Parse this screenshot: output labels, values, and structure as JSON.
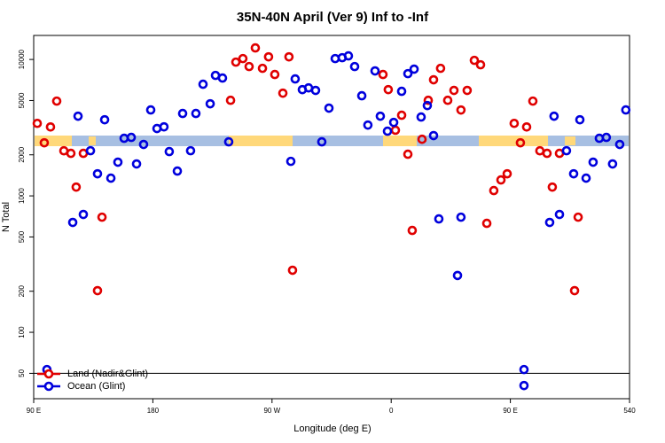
{
  "chart_data": {
    "type": "scatter",
    "title": "35N-40N April (Ver 9)   Inf to -Inf",
    "xlabel": "Longitude (deg E)",
    "ylabel": "N Total",
    "xlim": [
      90,
      540
    ],
    "ylim": [
      32.6,
      15000
    ],
    "log_y": true,
    "xticks": [
      {
        "value": 90,
        "label": "90 E"
      },
      180,
      {
        "value": 270,
        "label": "90 W"
      },
      {
        "value": 360,
        "label": "0"
      },
      {
        "value": 450,
        "label": "90 E"
      },
      540
    ],
    "yticks": [
      50,
      100,
      200,
      500,
      1000,
      2000,
      5000,
      10000
    ],
    "hline": 50,
    "legend": "bottom-left",
    "series": [
      {
        "name": "Land (Nadir&Glint)",
        "color": "#e00000",
        "x": [
          92.7,
          98,
          102.7,
          107.4,
          112.8,
          118.1,
          122.1,
          127.5,
          138.2,
          141.6,
          238.7,
          242.7,
          248,
          252.7,
          257.4,
          262.8,
          267.4,
          272.1,
          278.2,
          282.8,
          285.5,
          353.8,
          357.8,
          363.2,
          367.9,
          372.6,
          375.9,
          383.3,
          388,
          392,
          397.3,
          402.7,
          407.4,
          412.7,
          417.4,
          422.8,
          427.5,
          432.2,
          437.5,
          442.9,
          447.6,
          452.9,
          457.6,
          462.3,
          467,
          472.3,
          477.7,
          481.7,
          487.1,
          498.5,
          501.2
        ],
        "values": [
          3400,
          2450,
          3200,
          4950,
          2140,
          2050,
          1160,
          2050,
          202,
          698,
          5020,
          9560,
          10150,
          8870,
          12150,
          8610,
          10450,
          7760,
          5660,
          10450,
          285,
          7760,
          6010,
          3030,
          3900,
          2020,
          558,
          2600,
          5020,
          7100,
          8610,
          5020,
          5930,
          4260,
          5930,
          9850,
          9140,
          629,
          1094,
          1309,
          1452,
          3400,
          2450,
          3200,
          4950,
          2140,
          2050,
          1160,
          2050,
          202,
          698
        ]
      },
      {
        "name": "Ocean (Glint)",
        "color": "#0000dd",
        "x": [
          100,
          119.5,
          123.5,
          127.5,
          132.9,
          138.2,
          143.6,
          148.3,
          153.6,
          158.3,
          163.7,
          167.7,
          173,
          178.4,
          183.1,
          188.4,
          192.4,
          198.5,
          202.5,
          208.5,
          212.5,
          217.9,
          223.3,
          227.3,
          232.6,
          237.3,
          284.2,
          287.5,
          292.9,
          297.6,
          302.9,
          307.6,
          313,
          317.7,
          323,
          327.7,
          332.4,
          337.8,
          342.4,
          347.8,
          351.8,
          357.2,
          361.9,
          367.9,
          372.6,
          377.3,
          382.6,
          387.3,
          392,
          396,
          410.1,
          412.7,
          460.3,
          460.3,
          479.7,
          483,
          487.1,
          492.4,
          497.8,
          502.5,
          507.2,
          512.5,
          517.2,
          522.5,
          527.2,
          532.6,
          537.2
        ],
        "values": [
          53.3,
          639,
          3838,
          731,
          2143,
          1452,
          3614,
          1349,
          1766,
          2644,
          2683,
          1714,
          2383,
          4265,
          3117,
          3206,
          2112,
          1520,
          4018,
          2143,
          4018,
          6580,
          4732,
          7640,
          7310,
          2490,
          1791,
          7200,
          6010,
          6190,
          5930,
          2490,
          4397,
          10150,
          10300,
          10620,
          8870,
          5420,
          3304,
          8240,
          3838,
          2980,
          3456,
          5840,
          7870,
          8490,
          3784,
          4590,
          2767,
          678,
          261,
          698,
          53.3,
          40.7,
          639,
          3838,
          731,
          2143,
          1452,
          3614,
          1349,
          1766,
          2644,
          2683,
          1714,
          2383,
          4265
        ]
      }
    ]
  }
}
